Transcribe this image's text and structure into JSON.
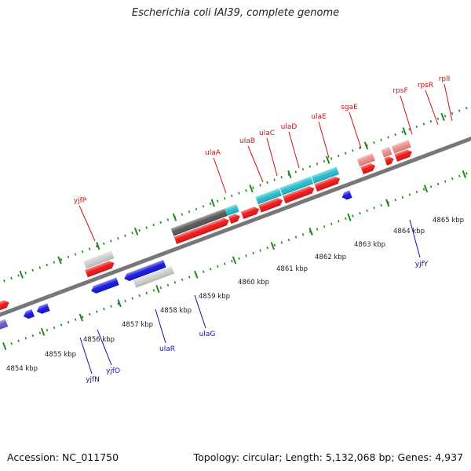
{
  "title": "Escherichia coli IAI39, complete genome",
  "footer": {
    "accession": "Accession: NC_011750",
    "topology": "Topology: circular; Length: 5,132,068 bp; Genes: 4,937"
  },
  "colors": {
    "backbone": "#777777",
    "tick": "#228822",
    "kbp_label": "#222222",
    "forward_gene_label": "#cc1111",
    "reverse_gene_label": "#1111aa",
    "red": "#ee1111",
    "pink": "#ee8888",
    "cyan": "#22bbcc",
    "dark_gray": "#555555",
    "light_gray": "#cccccc",
    "blue": "#1111dd",
    "purple": "#6655cc"
  },
  "kbp_labels": [
    "4854 kbp",
    "4855 kbp",
    "4856 kbp",
    "4857 kbp",
    "4858 kbp",
    "4859 kbp",
    "4860 kbp",
    "4861 kbp",
    "4862 kbp",
    "4863 kbp",
    "4864 kbp",
    "4865 kbp"
  ],
  "forward_labels": [
    "yjfP",
    "ulaA",
    "ulaB",
    "ulaC",
    "ulaD",
    "ulaE",
    "sgaE",
    "rpsF",
    "rpsR",
    "rplI"
  ],
  "reverse_labels": [
    "yjfN",
    "yjfO",
    "ulaR",
    "ulaG",
    "yjfY"
  ]
}
